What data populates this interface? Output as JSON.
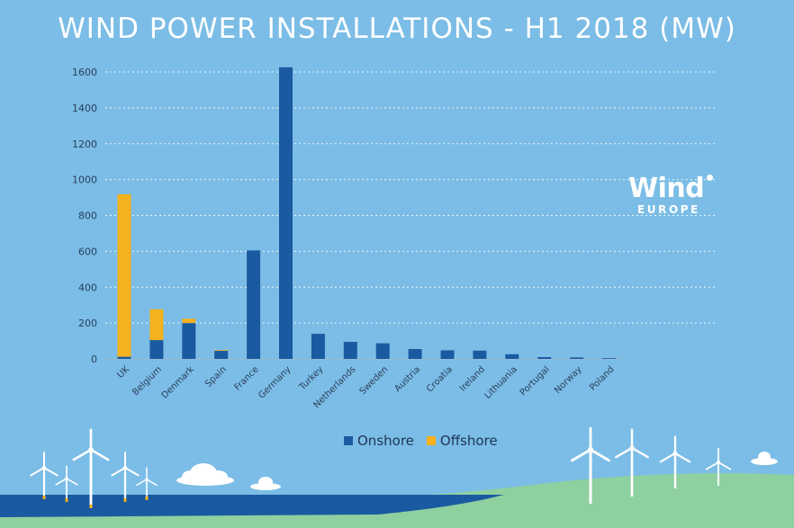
{
  "chart_data": {
    "type": "bar",
    "stacked": true,
    "title": "WIND POWER INSTALLATIONS - H1 2018 (MW)",
    "xlabel": "",
    "ylabel": "",
    "ylim": [
      0,
      1600
    ],
    "yticks": [
      0,
      200,
      400,
      600,
      800,
      1000,
      1200,
      1400,
      1600
    ],
    "grid": true,
    "legend_position": "bottom",
    "categories": [
      "UK",
      "Belgium",
      "Denmark",
      "Spain",
      "France",
      "Germany",
      "Turkey",
      "Netherlands",
      "Sweden",
      "Austria",
      "Croatia",
      "Ireland",
      "Lithuania",
      "Portugal",
      "Norway",
      "Poland"
    ],
    "series": [
      {
        "name": "Onshore",
        "color": "#1a5aa0",
        "values": [
          12,
          105,
          200,
          45,
          605,
          1626,
          140,
          95,
          87,
          55,
          48,
          46,
          26,
          10,
          8,
          4
        ]
      },
      {
        "name": "Offshore",
        "color": "#f4b21f",
        "values": [
          906,
          172,
          24,
          4,
          0,
          0,
          0,
          0,
          0,
          0,
          0,
          0,
          0,
          0,
          0,
          0
        ]
      }
    ]
  },
  "logo": {
    "wordmark": "Wind",
    "subtitle": "EUROPE"
  },
  "colors": {
    "background": "#7bbde6",
    "sea": "#1a5aa0",
    "land": "#8ed0a0",
    "turbine": "#ffffff"
  }
}
